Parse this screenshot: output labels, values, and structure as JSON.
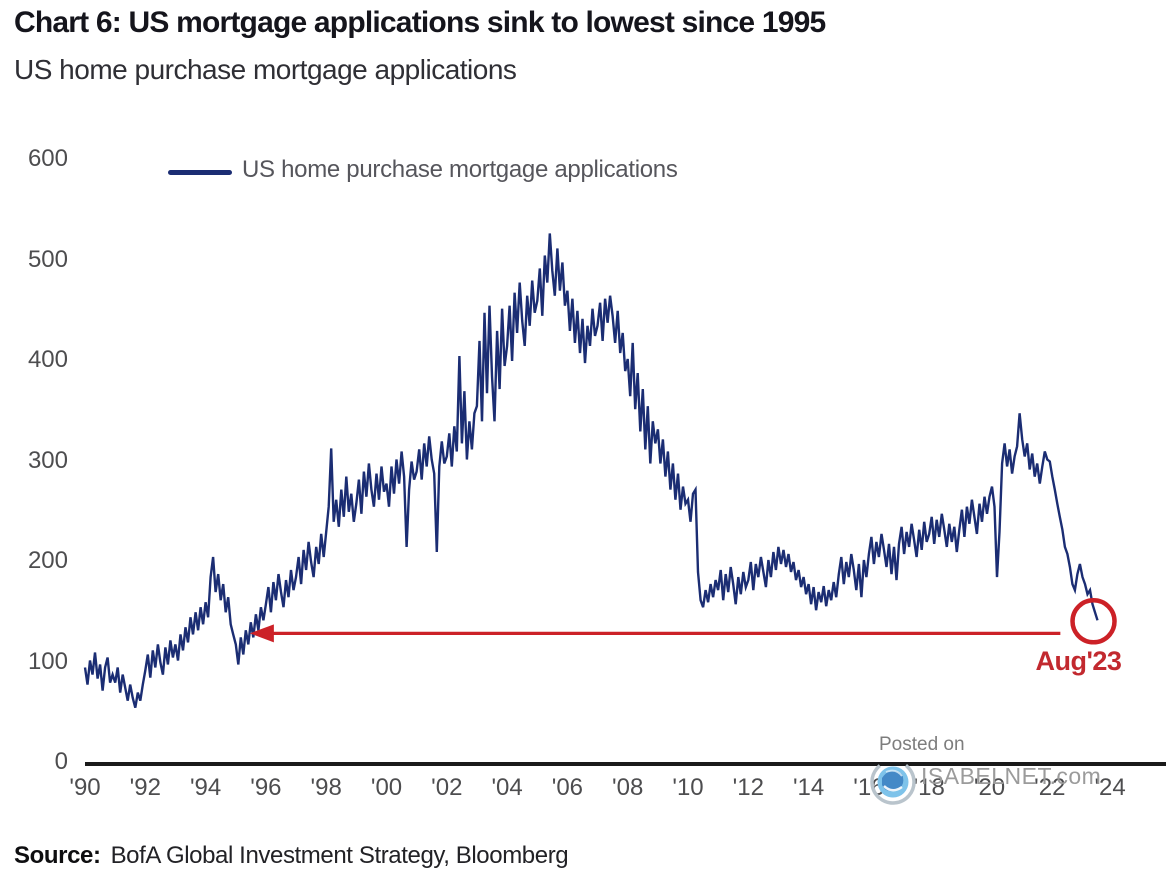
{
  "chart_data": {
    "type": "line",
    "title": "Chart 6: US mortgage applications sink to lowest since 1995",
    "subtitle": "US home purchase mortgage applications",
    "ylim": [
      0,
      600
    ],
    "yticks": [
      0,
      100,
      200,
      300,
      400,
      500,
      600
    ],
    "xticks": [
      {
        "year": 1990,
        "label": "'90"
      },
      {
        "year": 1992,
        "label": "'92"
      },
      {
        "year": 1994,
        "label": "'94"
      },
      {
        "year": 1996,
        "label": "'96"
      },
      {
        "year": 1998,
        "label": "'98"
      },
      {
        "year": 2000,
        "label": "'00"
      },
      {
        "year": 2002,
        "label": "'02"
      },
      {
        "year": 2004,
        "label": "'04"
      },
      {
        "year": 2006,
        "label": "'06"
      },
      {
        "year": 2008,
        "label": "'08"
      },
      {
        "year": 2010,
        "label": "'10"
      },
      {
        "year": 2012,
        "label": "'12"
      },
      {
        "year": 2014,
        "label": "'14"
      },
      {
        "year": 2016,
        "label": "'16"
      },
      {
        "year": 2018,
        "label": "'18"
      },
      {
        "year": 2020,
        "label": "'20"
      },
      {
        "year": 2022,
        "label": "'22"
      },
      {
        "year": 2024,
        "label": "'24"
      }
    ],
    "grid": false,
    "legend_position": "top-left",
    "series": [
      {
        "name": "US home purchase mortgage applications",
        "color": "#1b2d73",
        "start_year": 1990,
        "points_per_year": 12,
        "values": [
          95,
          78,
          102,
          88,
          110,
          84,
          98,
          72,
          95,
          105,
          80,
          88,
          80,
          95,
          70,
          88,
          75,
          62,
          78,
          65,
          55,
          70,
          62,
          78,
          92,
          108,
          85,
          112,
          95,
          118,
          100,
          88,
          115,
          98,
          122,
          105,
          118,
          102,
          128,
          112,
          135,
          120,
          145,
          128,
          150,
          132,
          155,
          138,
          160,
          145,
          185,
          205,
          170,
          188,
          162,
          178,
          150,
          165,
          138,
          128,
          118,
          98,
          125,
          108,
          132,
          118,
          140,
          125,
          148,
          132,
          155,
          142,
          158,
          175,
          150,
          180,
          162,
          188,
          170,
          155,
          182,
          165,
          192,
          172,
          185,
          205,
          178,
          212,
          192,
          220,
          200,
          185,
          215,
          198,
          228,
          205,
          230,
          255,
          313,
          240,
          262,
          235,
          272,
          245,
          285,
          250,
          268,
          240,
          258,
          282,
          248,
          290,
          265,
          298,
          272,
          255,
          288,
          262,
          295,
          270,
          278,
          255,
          295,
          268,
          302,
          278,
          310,
          285,
          215,
          272,
          300,
          282,
          290,
          312,
          282,
          318,
          295,
          325,
          302,
          288,
          210,
          295,
          320,
          298,
          305,
          328,
          295,
          335,
          310,
          405,
          318,
          370,
          302,
          340,
          312,
          348,
          355,
          420,
          340,
          448,
          368,
          455,
          385,
          340,
          430,
          372,
          452,
          395,
          415,
          455,
          400,
          468,
          428,
          478,
          440,
          415,
          465,
          435,
          480,
          448,
          460,
          492,
          445,
          505,
          478,
          527,
          490,
          465,
          512,
          470,
          498,
          455,
          470,
          430,
          462,
          418,
          450,
          408,
          442,
          398,
          435,
          415,
          452,
          425,
          435,
          458,
          420,
          462,
          438,
          465,
          445,
          418,
          450,
          408,
          428,
          390,
          402,
          365,
          418,
          352,
          388,
          330,
          372,
          312,
          355,
          298,
          340,
          318,
          332,
          298,
          322,
          285,
          310,
          272,
          298,
          262,
          288,
          252,
          275,
          258,
          262,
          240,
          268,
          272,
          190,
          162,
          155,
          172,
          160,
          178,
          165,
          182,
          172,
          192,
          162,
          188,
          170,
          195,
          178,
          158,
          185,
          168,
          190,
          175,
          182,
          200,
          172,
          198,
          185,
          205,
          190,
          175,
          202,
          185,
          210,
          192,
          215,
          198,
          212,
          195,
          208,
          190,
          200,
          182,
          192,
          175,
          185,
          168,
          178,
          158,
          175,
          152,
          170,
          160,
          176,
          156,
          172,
          162,
          180,
          165,
          188,
          205,
          178,
          200,
          185,
          208,
          192,
          172,
          198,
          165,
          202,
          185,
          208,
          225,
          198,
          220,
          205,
          228,
          212,
          195,
          218,
          188,
          215,
          182,
          218,
          235,
          208,
          230,
          215,
          238,
          222,
          205,
          232,
          212,
          240,
          220,
          228,
          245,
          218,
          242,
          225,
          248,
          232,
          215,
          238,
          220,
          235,
          210,
          232,
          252,
          225,
          255,
          238,
          262,
          245,
          228,
          258,
          240,
          265,
          248,
          265,
          275,
          255,
          185,
          230,
          298,
          318,
          295,
          312,
          288,
          305,
          315,
          348,
          322,
          305,
          318,
          292,
          308,
          285,
          298,
          278,
          295,
          310,
          302,
          300,
          285,
          272,
          258,
          245,
          232,
          215,
          208,
          195,
          178,
          172,
          188,
          198,
          185,
          178,
          168,
          172,
          158,
          150,
          142
        ]
      }
    ],
    "annotations": {
      "arrow": {
        "value": 129,
        "from_year": 2022.35,
        "to_year": 1995.8,
        "color": "#cc2127"
      },
      "circle": {
        "year": 2023.45,
        "value": 141,
        "radius_px": 21,
        "color": "#cc2127"
      },
      "label": {
        "text": "Aug'23",
        "color": "#c2292f"
      }
    }
  },
  "legend": {
    "label": "US home purchase mortgage applications"
  },
  "watermark": {
    "posted_on": "Posted on",
    "site": "ISABELNET.com"
  },
  "source": {
    "label": "Source:",
    "text": "BofA Global Investment Strategy, Bloomberg"
  }
}
